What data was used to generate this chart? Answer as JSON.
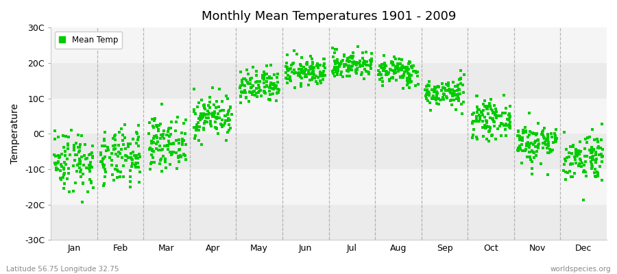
{
  "title": "Monthly Mean Temperatures 1901 - 2009",
  "ylabel": "Temperature",
  "month_labels": [
    "Jan",
    "Feb",
    "Mar",
    "Apr",
    "May",
    "Jun",
    "Jul",
    "Aug",
    "Sep",
    "Oct",
    "Nov",
    "Dec"
  ],
  "ylim": [
    -30,
    30
  ],
  "yticks": [
    -30,
    -20,
    -10,
    0,
    10,
    20,
    30
  ],
  "ytick_labels": [
    "-30C",
    "-20C",
    "-10C",
    "0C",
    "10C",
    "20C",
    "30C"
  ],
  "dot_color": "#00CC00",
  "footer_left": "Latitude 56.75 Longitude 32.75",
  "footer_right": "worldspecies.org",
  "legend_label": "Mean Temp",
  "n_years": 109,
  "monthly_means": [
    -7.5,
    -7.0,
    -2.5,
    5.0,
    13.0,
    17.5,
    19.5,
    17.5,
    11.5,
    4.0,
    -2.5,
    -6.5
  ],
  "monthly_stds": [
    4.5,
    4.0,
    3.5,
    3.0,
    2.5,
    2.0,
    2.0,
    2.0,
    2.0,
    2.5,
    3.0,
    3.5
  ],
  "dot_size": 5,
  "dot_alpha": 1.0,
  "h_band_colors": [
    "#ebebeb",
    "#f5f5f5"
  ],
  "dashed_color": "#999999",
  "plot_bg": "#f0f0f0"
}
